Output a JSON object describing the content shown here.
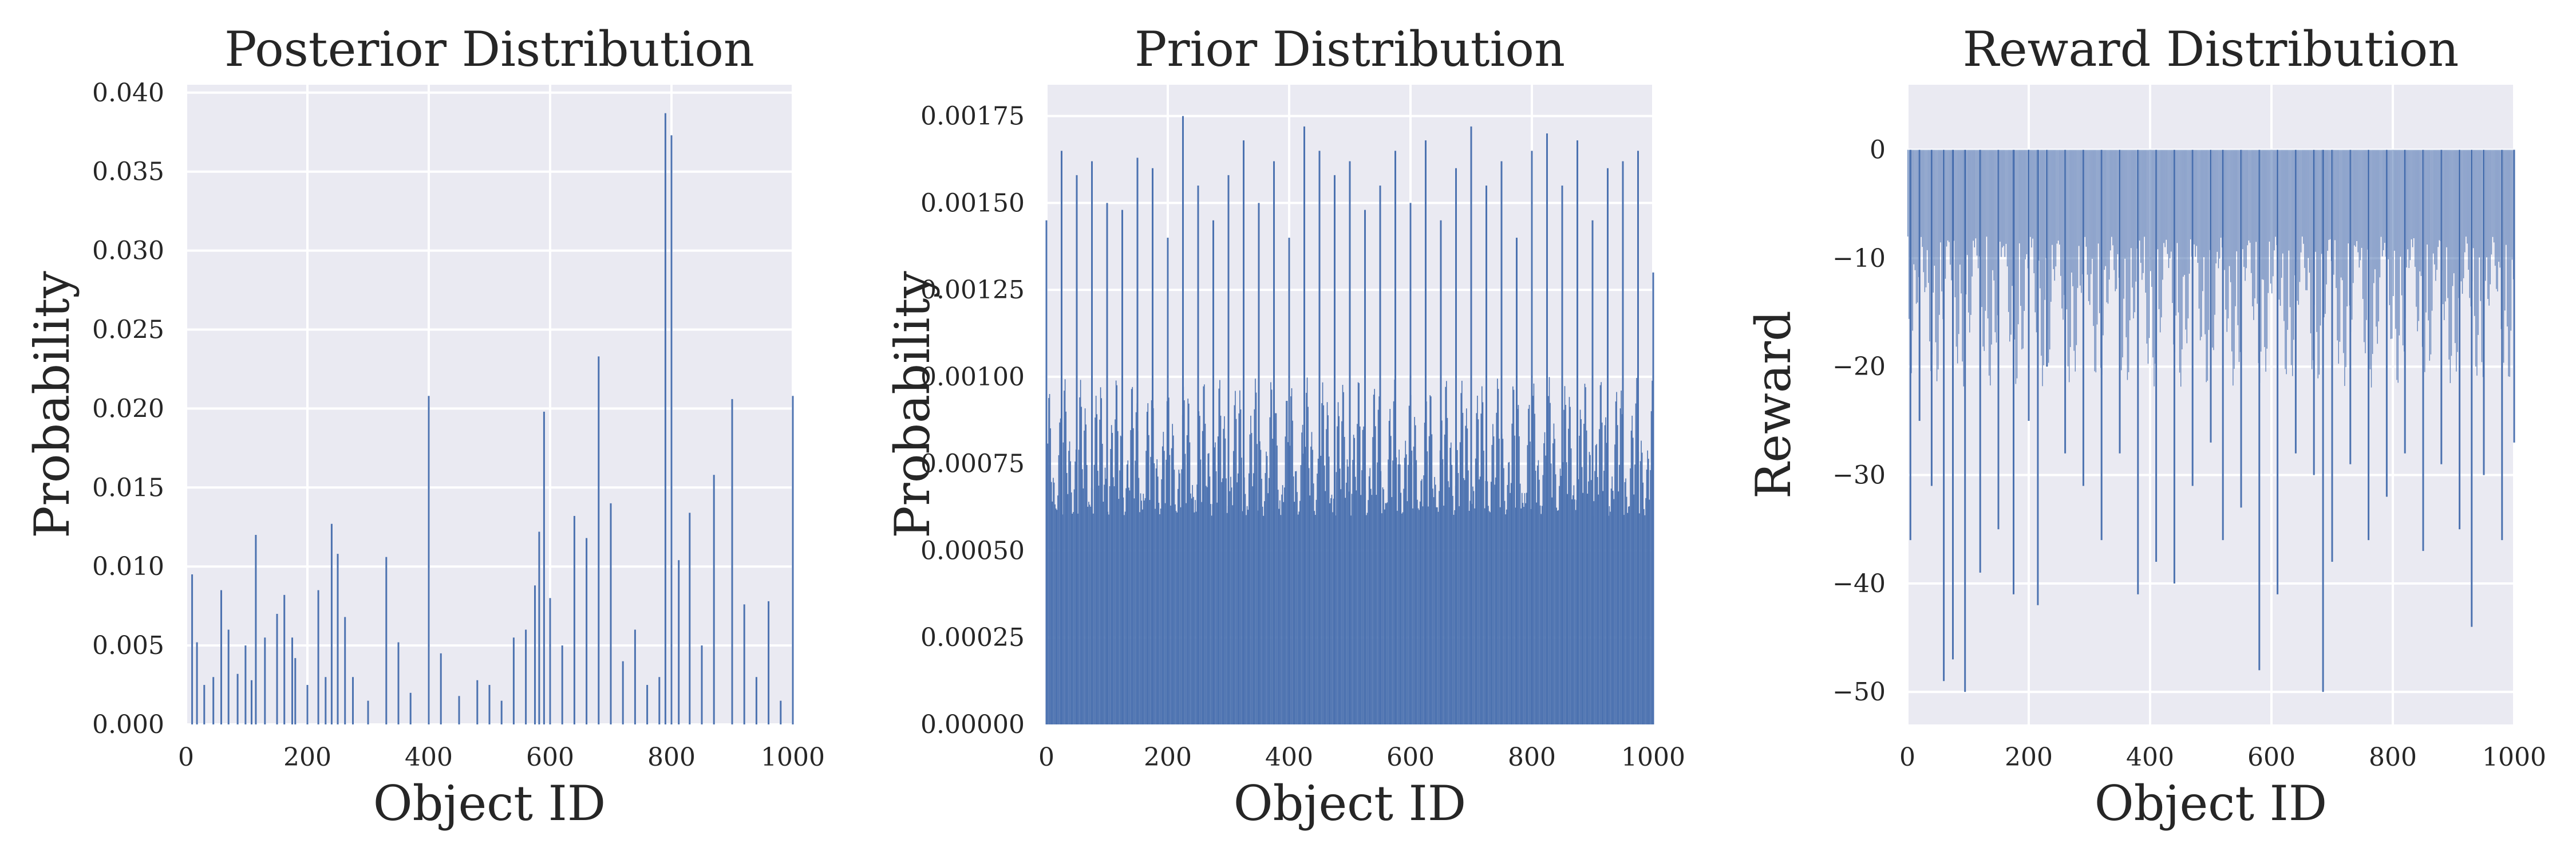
{
  "figure": {
    "bar_color": "#4c72b0",
    "background": "#ffffff",
    "axes_face": "#eaeaf2",
    "grid_color": "#ffffff",
    "text_color": "#262626"
  },
  "chart_data": [
    {
      "type": "bar",
      "title": "Posterior Distribution",
      "xlabel": "Object ID",
      "ylabel": "Probability",
      "xlim": [
        0,
        1000
      ],
      "ylim": [
        0,
        0.0405
      ],
      "grid": true,
      "xticks": [
        0,
        200,
        400,
        600,
        800,
        1000
      ],
      "xtick_labels": [
        "0",
        "200",
        "400",
        "600",
        "800",
        "1000"
      ],
      "yticks": [
        0,
        0.005,
        0.01,
        0.015,
        0.02,
        0.025,
        0.03,
        0.035,
        0.04
      ],
      "ytick_labels": [
        "0.000",
        "0.005",
        "0.010",
        "0.015",
        "0.020",
        "0.025",
        "0.030",
        "0.035",
        "0.040"
      ],
      "series": [
        {
          "x": [
            10,
            18,
            30,
            45,
            58,
            70,
            85,
            98,
            108,
            115,
            130,
            150,
            162,
            175,
            180,
            200,
            218,
            230,
            240,
            250,
            262,
            275,
            300,
            330,
            350,
            370,
            400,
            420,
            450,
            480,
            500,
            520,
            540,
            560,
            575,
            582,
            590,
            600,
            620,
            640,
            660,
            680,
            700,
            720,
            740,
            760,
            780,
            790,
            800,
            812,
            830,
            850,
            870,
            900,
            920,
            940,
            960,
            980,
            1000
          ],
          "values": [
            0.0095,
            0.0052,
            0.0025,
            0.003,
            0.0085,
            0.006,
            0.0032,
            0.005,
            0.0028,
            0.012,
            0.0055,
            0.007,
            0.0082,
            0.0055,
            0.0042,
            0.0025,
            0.0085,
            0.003,
            0.0127,
            0.0108,
            0.0068,
            0.003,
            0.0015,
            0.0106,
            0.0052,
            0.002,
            0.0208,
            0.0045,
            0.0018,
            0.0028,
            0.0025,
            0.0015,
            0.0055,
            0.006,
            0.0088,
            0.0122,
            0.0198,
            0.008,
            0.005,
            0.0132,
            0.0118,
            0.0233,
            0.014,
            0.004,
            0.006,
            0.0025,
            0.003,
            0.0387,
            0.0373,
            0.0104,
            0.0134,
            0.005,
            0.0158,
            0.0206,
            0.0076,
            0.003,
            0.0078,
            0.0015,
            0.0208
          ]
        }
      ]
    },
    {
      "type": "bar",
      "title": "Prior Distribution",
      "xlabel": "Object ID",
      "ylabel": "Probability",
      "xlim": [
        0,
        1000
      ],
      "ylim": [
        0,
        0.00184
      ],
      "grid": true,
      "xticks": [
        0,
        200,
        400,
        600,
        800,
        1000
      ],
      "xtick_labels": [
        "0",
        "200",
        "400",
        "600",
        "800",
        "1000"
      ],
      "yticks": [
        0,
        0.00025,
        0.0005,
        0.00075,
        0.001,
        0.00125,
        0.0015,
        0.00175
      ],
      "ytick_labels": [
        "0.00000",
        "0.00025",
        "0.00050",
        "0.00075",
        "0.00100",
        "0.00125",
        "0.00150",
        "0.00175"
      ],
      "series": [
        {
          "x": [
            0,
            25,
            50,
            75,
            100,
            125,
            150,
            175,
            200,
            225,
            250,
            275,
            300,
            325,
            350,
            375,
            400,
            425,
            450,
            475,
            500,
            525,
            550,
            575,
            600,
            625,
            650,
            675,
            700,
            725,
            750,
            775,
            800,
            825,
            850,
            875,
            900,
            925,
            950,
            975,
            1000
          ],
          "values": [
            0.00145,
            0.00165,
            0.00158,
            0.00162,
            0.0015,
            0.00148,
            0.00163,
            0.0016,
            0.0014,
            0.00175,
            0.00155,
            0.00145,
            0.00158,
            0.00168,
            0.0015,
            0.00162,
            0.0014,
            0.00172,
            0.00165,
            0.00158,
            0.00162,
            0.00148,
            0.00155,
            0.00165,
            0.0015,
            0.00168,
            0.00145,
            0.0016,
            0.00172,
            0.00155,
            0.00162,
            0.0014,
            0.00165,
            0.0017,
            0.00155,
            0.00168,
            0.00145,
            0.0016,
            0.00162,
            0.00165,
            0.0013
          ]
        }
      ]
    },
    {
      "type": "bar",
      "title": "Reward Distribution",
      "xlabel": "Object ID",
      "ylabel": "Reward",
      "xlim": [
        0,
        1000
      ],
      "ylim": [
        -53,
        6
      ],
      "grid": true,
      "xticks": [
        0,
        200,
        400,
        600,
        800,
        1000
      ],
      "xtick_labels": [
        "0",
        "200",
        "400",
        "600",
        "800",
        "1000"
      ],
      "yticks": [
        0,
        -10,
        -20,
        -30,
        -40,
        -50
      ],
      "ytick_labels": [
        "0",
        "−10",
        "−20",
        "−30",
        "−40",
        "−50"
      ],
      "series": [
        {
          "x": [
            5,
            20,
            40,
            60,
            75,
            95,
            120,
            150,
            175,
            200,
            215,
            230,
            260,
            290,
            320,
            350,
            380,
            410,
            440,
            470,
            500,
            520,
            550,
            580,
            610,
            640,
            670,
            685,
            700,
            730,
            760,
            790,
            820,
            850,
            880,
            910,
            930,
            950,
            980,
            1000
          ],
          "values": [
            -36,
            -25,
            -31,
            -49,
            -47,
            -50,
            -39,
            -35,
            -41,
            -25,
            -42,
            -20,
            -28,
            -31,
            -36,
            -28,
            -41,
            -38,
            -40,
            -31,
            -27,
            -36,
            -33,
            -48,
            -41,
            -28,
            -30,
            -50,
            -38,
            -29,
            -36,
            -32,
            -28,
            -37,
            -29,
            -35,
            -44,
            -30,
            -36,
            -27
          ]
        }
      ]
    }
  ]
}
